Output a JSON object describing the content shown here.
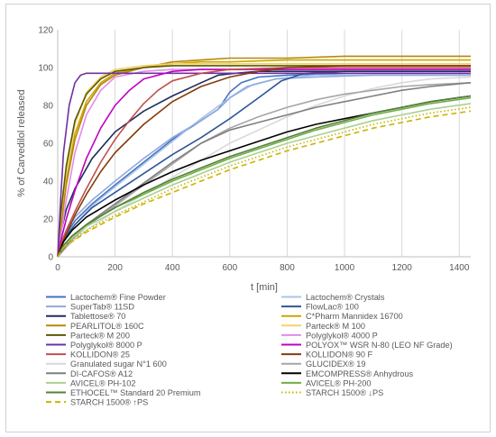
{
  "chart_data": {
    "type": "line",
    "title": "",
    "xlabel": "t [min]",
    "ylabel": "% of Carvedilol released",
    "xlim": [
      0,
      1440
    ],
    "ylim": [
      0,
      120
    ],
    "xticks": [
      "0",
      "200",
      "400",
      "600",
      "800",
      "1000",
      "1200",
      "1400"
    ],
    "yticks": [
      "0",
      "20",
      "40",
      "60",
      "80",
      "100",
      "120"
    ],
    "grid": "vertical",
    "legend": "bottom",
    "series": [
      {
        "name": "Lactochem® Fine Powder",
        "color": "#4472c4",
        "dash": "solid",
        "x": [
          0,
          10,
          30,
          60,
          120,
          200,
          300,
          400,
          500,
          560,
          600,
          640,
          700,
          800,
          1000,
          1200,
          1440
        ],
        "y": [
          0,
          6,
          12,
          19,
          28,
          38,
          50,
          62,
          72,
          78,
          87,
          92,
          95,
          96,
          97,
          97,
          97
        ]
      },
      {
        "name": "Lactochem® Crystals",
        "color": "#a9c4e8",
        "dash": "solid",
        "x": [
          0,
          10,
          30,
          60,
          120,
          200,
          300,
          400,
          500,
          600,
          680,
          760,
          900,
          1100,
          1300,
          1440
        ],
        "y": [
          0,
          5,
          10,
          17,
          27,
          37,
          49,
          61,
          73,
          84,
          91,
          94,
          96,
          96,
          96,
          96
        ]
      },
      {
        "name": "SuperTab® 11SD",
        "color": "#8faadc",
        "dash": "solid",
        "x": [
          0,
          10,
          30,
          60,
          120,
          200,
          300,
          400,
          500,
          560,
          600,
          660,
          760,
          900,
          1100,
          1440
        ],
        "y": [
          0,
          7,
          14,
          21,
          30,
          40,
          52,
          63,
          72,
          78,
          84,
          90,
          94,
          95,
          96,
          96
        ]
      },
      {
        "name": "FlowLac® 100",
        "color": "#2f5597",
        "dash": "solid",
        "x": [
          0,
          10,
          30,
          60,
          120,
          200,
          300,
          400,
          500,
          600,
          700,
          780,
          860,
          1000,
          1200,
          1440
        ],
        "y": [
          0,
          6,
          11,
          17,
          26,
          34,
          44,
          54,
          63,
          73,
          84,
          93,
          97,
          98,
          98,
          98
        ]
      },
      {
        "name": "Tablettose® 70",
        "color": "#1f2d5c",
        "dash": "solid",
        "x": [
          0,
          10,
          30,
          60,
          120,
          200,
          300,
          400,
          500,
          560,
          620,
          700,
          800,
          1000,
          1200,
          1440
        ],
        "y": [
          0,
          12,
          25,
          36,
          52,
          66,
          77,
          85,
          92,
          96,
          97,
          98,
          98,
          98,
          98,
          98
        ]
      },
      {
        "name": "C*Pharm Mannidex 16700",
        "color": "#c9a700",
        "dash": "solid",
        "x": [
          0,
          10,
          30,
          60,
          100,
          150,
          200,
          300,
          400,
          500,
          600,
          800,
          1000,
          1200,
          1440
        ],
        "y": [
          0,
          15,
          40,
          65,
          82,
          92,
          97,
          100,
          102,
          103,
          103,
          104,
          104,
          104,
          104
        ]
      },
      {
        "name": "PEARLITOL® 160C",
        "color": "#b8860b",
        "dash": "solid",
        "x": [
          0,
          10,
          30,
          60,
          100,
          150,
          200,
          300,
          400,
          500,
          600,
          800,
          1000,
          1200,
          1440
        ],
        "y": [
          0,
          14,
          38,
          62,
          80,
          91,
          96,
          100,
          103,
          104,
          105,
          105,
          106,
          106,
          106
        ]
      },
      {
        "name": "Parteck® M 100",
        "color": "#f2d26a",
        "dash": "solid",
        "x": [
          0,
          10,
          30,
          60,
          100,
          150,
          200,
          300,
          400,
          600,
          800,
          1000,
          1200,
          1440
        ],
        "y": [
          0,
          20,
          45,
          70,
          87,
          95,
          99,
          101,
          102,
          102,
          102,
          102,
          102,
          102
        ]
      },
      {
        "name": "Parteck® M 200",
        "color": "#5b5800",
        "dash": "solid",
        "x": [
          0,
          10,
          30,
          60,
          100,
          150,
          200,
          300,
          400,
          600,
          800,
          1000,
          1200,
          1440
        ],
        "y": [
          0,
          22,
          48,
          72,
          86,
          94,
          98,
          100,
          101,
          101,
          101,
          101,
          101,
          101
        ]
      },
      {
        "name": "Polyglykol® 4000 P",
        "color": "#e38be8",
        "dash": "solid",
        "x": [
          0,
          10,
          30,
          60,
          100,
          150,
          200,
          300,
          400,
          600,
          800,
          1000,
          1200,
          1440
        ],
        "y": [
          0,
          10,
          30,
          55,
          75,
          88,
          95,
          98,
          99,
          99,
          99,
          99,
          99,
          99
        ]
      },
      {
        "name": "Polyglykol® 8000 P",
        "color": "#7030a0",
        "dash": "solid",
        "x": [
          0,
          10,
          20,
          40,
          60,
          80,
          100,
          150,
          200,
          400,
          600,
          800,
          1000,
          1200,
          1440
        ],
        "y": [
          0,
          30,
          55,
          80,
          92,
          96,
          97,
          97,
          97,
          97,
          97,
          97,
          97,
          97,
          97
        ]
      },
      {
        "name": "POLYOX™ WSR N-80 (LEO NF Grade)",
        "color": "#c000c0",
        "dash": "solid",
        "x": [
          0,
          10,
          30,
          60,
          100,
          150,
          200,
          250,
          300,
          400,
          500,
          600,
          800,
          1000,
          1200,
          1440
        ],
        "y": [
          0,
          8,
          20,
          35,
          52,
          68,
          80,
          88,
          94,
          98,
          99,
          99,
          99,
          99,
          99,
          99
        ]
      },
      {
        "name": "KOLLIDON® 25",
        "color": "#c0504d",
        "dash": "solid",
        "x": [
          0,
          10,
          30,
          60,
          100,
          150,
          200,
          250,
          300,
          350,
          400,
          500,
          600,
          800,
          1000,
          1200,
          1440
        ],
        "y": [
          0,
          6,
          14,
          24,
          36,
          50,
          62,
          72,
          81,
          88,
          93,
          97,
          99,
          100,
          100,
          100,
          100
        ]
      },
      {
        "name": "KOLLIDON® 90 F",
        "color": "#843c0c",
        "dash": "solid",
        "x": [
          0,
          10,
          30,
          60,
          100,
          150,
          200,
          300,
          400,
          500,
          600,
          700,
          800,
          1000,
          1200,
          1440
        ],
        "y": [
          0,
          5,
          12,
          22,
          33,
          45,
          55,
          70,
          82,
          90,
          95,
          98,
          100,
          101,
          101,
          101
        ]
      },
      {
        "name": "Granulated sugar N°1 600",
        "color": "#d9d9d9",
        "dash": "solid",
        "x": [
          0,
          50,
          100,
          200,
          300,
          400,
          500,
          600,
          700,
          800,
          900,
          1000,
          1100,
          1200,
          1300,
          1440
        ],
        "y": [
          0,
          8,
          14,
          24,
          33,
          42,
          51,
          60,
          67,
          74,
          80,
          85,
          89,
          92,
          94,
          95
        ]
      },
      {
        "name": "GLUCIDEX® 19",
        "color": "#a6a6a6",
        "dash": "solid",
        "x": [
          0,
          50,
          100,
          200,
          300,
          400,
          500,
          600,
          700,
          800,
          900,
          1000,
          1100,
          1200,
          1300,
          1440
        ],
        "y": [
          0,
          9,
          16,
          27,
          38,
          49,
          60,
          68,
          74,
          79,
          83,
          86,
          88,
          90,
          91,
          92
        ]
      },
      {
        "name": "DI-CAFOS® A12",
        "color": "#7f7f7f",
        "dash": "solid",
        "x": [
          0,
          50,
          100,
          200,
          300,
          400,
          500,
          600,
          700,
          800,
          900,
          1000,
          1100,
          1200,
          1300,
          1440
        ],
        "y": [
          0,
          10,
          17,
          28,
          39,
          50,
          60,
          67,
          71,
          75,
          79,
          82,
          85,
          88,
          90,
          92
        ]
      },
      {
        "name": "EMCOMPRESS® Anhydrous",
        "color": "#000000",
        "dash": "solid",
        "x": [
          0,
          20,
          50,
          100,
          200,
          300,
          400,
          500,
          600,
          700,
          800,
          900,
          1000,
          1100,
          1200,
          1300,
          1440
        ],
        "y": [
          0,
          8,
          14,
          21,
          30,
          38,
          45,
          51,
          56,
          61,
          66,
          70,
          73,
          76,
          79,
          82,
          85
        ]
      },
      {
        "name": "AVICEL® PH-102",
        "color": "#a9d18e",
        "dash": "solid",
        "x": [
          0,
          20,
          50,
          100,
          200,
          300,
          400,
          500,
          600,
          700,
          800,
          900,
          1000,
          1100,
          1200,
          1300,
          1440
        ],
        "y": [
          0,
          6,
          10,
          16,
          24,
          31,
          38,
          44,
          50,
          55,
          60,
          64,
          68,
          72,
          75,
          78,
          81
        ]
      },
      {
        "name": "AVICEL® PH-200",
        "color": "#70ad47",
        "dash": "solid",
        "x": [
          0,
          20,
          50,
          100,
          200,
          300,
          400,
          500,
          600,
          700,
          800,
          900,
          1000,
          1100,
          1200,
          1300,
          1440
        ],
        "y": [
          0,
          6,
          11,
          17,
          26,
          33,
          40,
          46,
          52,
          57,
          62,
          67,
          71,
          75,
          78,
          81,
          84
        ]
      },
      {
        "name": "ETHOCEL™ Standard 20 Premium",
        "color": "#548235",
        "dash": "solid",
        "x": [
          0,
          20,
          50,
          100,
          200,
          300,
          400,
          500,
          600,
          700,
          800,
          900,
          1000,
          1100,
          1200,
          1300,
          1440
        ],
        "y": [
          0,
          6,
          11,
          17,
          26,
          34,
          41,
          47,
          53,
          58,
          63,
          68,
          72,
          76,
          79,
          82,
          85
        ]
      },
      {
        "name": "STARCH 1500® ↓PS",
        "color": "#c9b400",
        "dash": "dotted",
        "x": [
          0,
          20,
          50,
          100,
          200,
          300,
          400,
          500,
          600,
          700,
          800,
          900,
          1000,
          1100,
          1200,
          1300,
          1440
        ],
        "y": [
          0,
          5,
          9,
          14,
          22,
          29,
          36,
          42,
          48,
          53,
          58,
          62,
          66,
          70,
          73,
          76,
          79
        ]
      },
      {
        "name": "STARCH 1500® ↑PS",
        "color": "#c9b400",
        "dash": "dashed",
        "x": [
          0,
          20,
          50,
          100,
          200,
          300,
          400,
          500,
          600,
          700,
          800,
          900,
          1000,
          1100,
          1200,
          1300,
          1440
        ],
        "y": [
          0,
          5,
          8,
          13,
          21,
          28,
          34,
          40,
          46,
          51,
          56,
          60,
          64,
          68,
          71,
          74,
          77
        ]
      }
    ]
  }
}
